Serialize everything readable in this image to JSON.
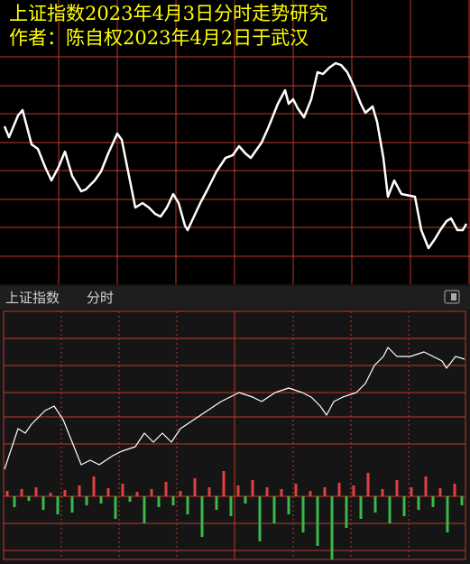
{
  "tabs": [
    "上证指数",
    "分时"
  ],
  "chart_data": [
    {
      "type": "line",
      "title": "上证指数2023年4月3日分时走势研究",
      "subtitle": "作者：陈自权2023年4月2日于武汉",
      "color": "#ffffff",
      "grid": true,
      "grid_color": "#c0392b",
      "xlim": [
        0,
        521
      ],
      "ylim": [
        0,
        315
      ],
      "xticks": [
        65,
        130,
        195,
        260,
        325,
        390,
        455
      ],
      "yticks": [
        31,
        63,
        94,
        126,
        157,
        189,
        220,
        252
      ],
      "x": [
        5,
        10,
        20,
        25,
        35,
        42,
        50,
        57,
        65,
        72,
        80,
        90,
        95,
        105,
        112,
        120,
        130,
        135,
        142,
        150,
        158,
        165,
        172,
        178,
        185,
        192,
        198,
        205,
        208,
        215,
        222,
        230,
        240,
        250,
        258,
        265,
        272,
        278,
        285,
        290,
        298,
        308,
        316,
        320,
        325,
        330,
        337,
        345,
        352,
        358,
        365,
        372,
        378,
        385,
        392,
        400,
        405,
        413,
        418,
        425,
        430,
        437,
        445,
        460,
        467,
        475,
        482,
        488,
        495,
        500,
        507,
        513,
        517
      ],
      "values": [
        175,
        163,
        187,
        193,
        155,
        150,
        130,
        115,
        130,
        147,
        120,
        103,
        105,
        115,
        125,
        145,
        167,
        160,
        125,
        85,
        90,
        85,
        78,
        75,
        85,
        100,
        90,
        65,
        60,
        75,
        90,
        105,
        125,
        140,
        143,
        153,
        145,
        140,
        150,
        157,
        175,
        200,
        215,
        200,
        205,
        195,
        185,
        205,
        235,
        233,
        240,
        245,
        243,
        235,
        220,
        200,
        190,
        197,
        180,
        140,
        97,
        115,
        100,
        97,
        60,
        40,
        50,
        60,
        70,
        73,
        60,
        60,
        67
      ]
    },
    {
      "type": "line",
      "color": "#ffffff",
      "grid": true,
      "grid_color": "#c0392b",
      "xlim": [
        0,
        521
      ],
      "ylim": [
        0,
        177
      ],
      "xticks": [
        68,
        132,
        196,
        260,
        325,
        389,
        453
      ],
      "yticks": [
        30,
        60,
        87,
        117,
        147
      ],
      "x": [
        5,
        15,
        20,
        28,
        35,
        50,
        60,
        70,
        80,
        90,
        100,
        110,
        125,
        135,
        150,
        160,
        170,
        180,
        190,
        200,
        215,
        230,
        245,
        255,
        265,
        280,
        290,
        305,
        320,
        335,
        345,
        355,
        362,
        370,
        380,
        395,
        405,
        415,
        425,
        430,
        440,
        455,
        470,
        480,
        490,
        495,
        505,
        515
      ],
      "values": [
        2,
        32,
        47,
        42,
        52,
        67,
        72,
        57,
        32,
        7,
        12,
        7,
        17,
        22,
        27,
        42,
        32,
        42,
        32,
        47,
        57,
        67,
        77,
        82,
        87,
        82,
        77,
        87,
        92,
        87,
        82,
        72,
        62,
        77,
        82,
        87,
        97,
        117,
        127,
        137,
        127,
        127,
        132,
        127,
        122,
        114,
        127,
        124
      ]
    },
    {
      "type": "bar",
      "up_color": "#e04040",
      "down_color": "#3cb84a",
      "grid": true,
      "grid_color": "#c0392b",
      "xlim": [
        0,
        521
      ],
      "ylim": [
        -70,
        28
      ],
      "yticks": [
        0,
        -30,
        -60
      ],
      "x": [
        8,
        16,
        24,
        32,
        40,
        48,
        56,
        64,
        72,
        80,
        88,
        96,
        104,
        112,
        120,
        128,
        136,
        144,
        152,
        160,
        168,
        176,
        184,
        192,
        200,
        208,
        216,
        224,
        232,
        240,
        248,
        256,
        264,
        272,
        280,
        288,
        296,
        304,
        312,
        320,
        328,
        336,
        344,
        352,
        360,
        368,
        376,
        384,
        392,
        400,
        408,
        416,
        424,
        432,
        440,
        448,
        456,
        464,
        472,
        480,
        488,
        496,
        504,
        512
      ],
      "values": [
        6,
        -12,
        8,
        -5,
        10,
        -15,
        4,
        -20,
        7,
        -18,
        12,
        -10,
        22,
        -8,
        9,
        -25,
        14,
        -6,
        5,
        -30,
        8,
        -12,
        16,
        -10,
        6,
        -20,
        20,
        -45,
        10,
        -15,
        28,
        -22,
        12,
        -8,
        18,
        -50,
        10,
        -30,
        8,
        -20,
        14,
        -40,
        6,
        -55,
        10,
        -70,
        15,
        -35,
        12,
        -25,
        26,
        -18,
        8,
        -30,
        18,
        -22,
        10,
        -15,
        22,
        -12,
        9,
        -40,
        14,
        -10
      ]
    }
  ]
}
